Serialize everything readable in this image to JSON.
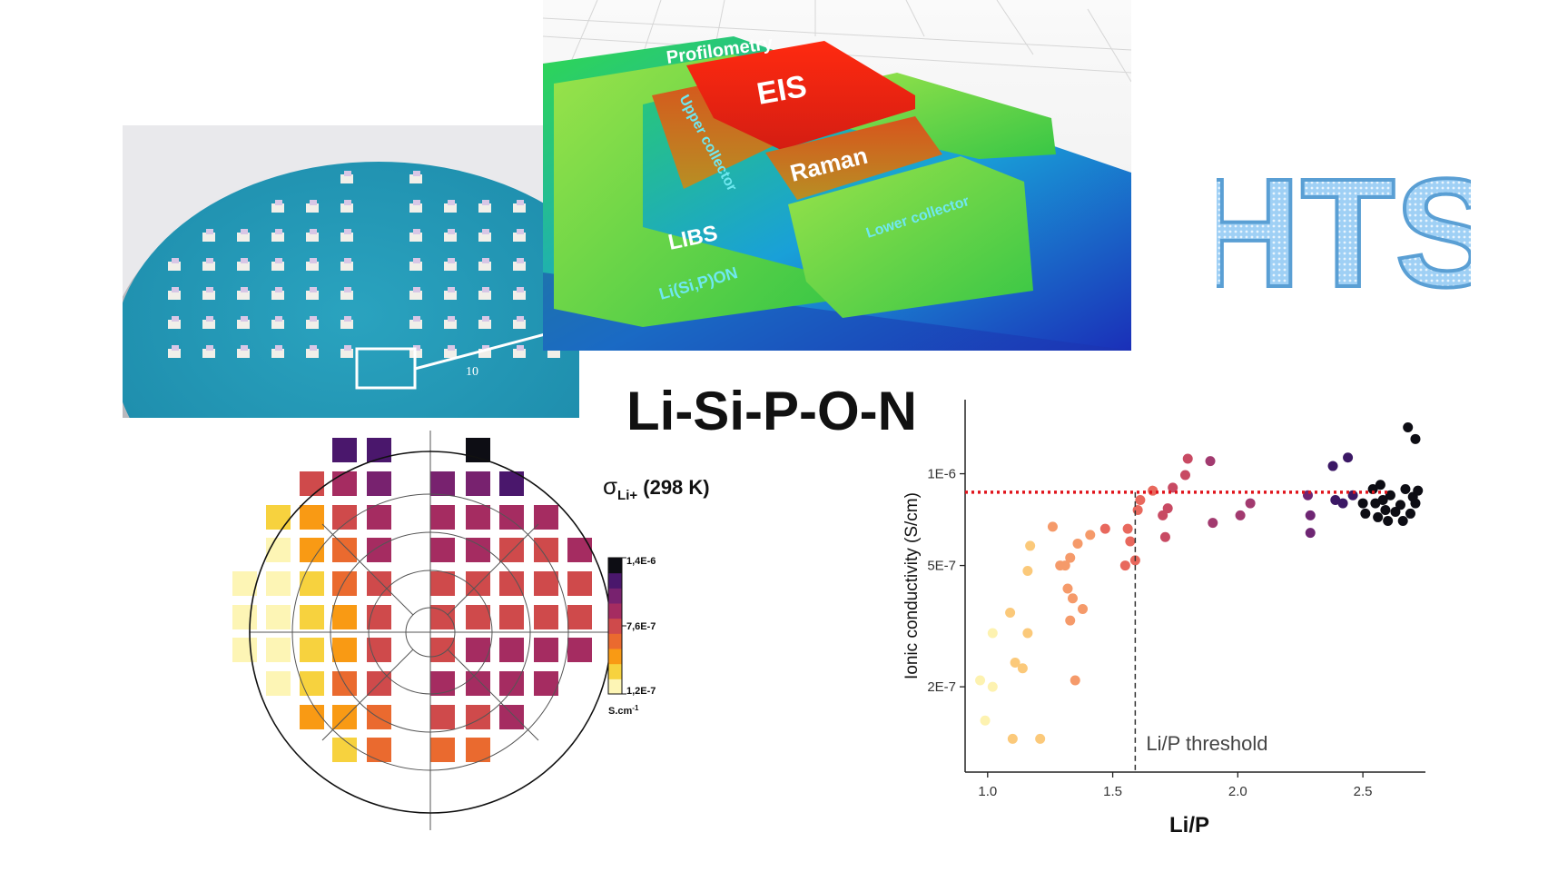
{
  "compound": "Li-Si-P-O-N",
  "hts_logo": "HTS",
  "profilometry": {
    "labels": {
      "profilometry": "Profilometry",
      "eis": "EIS",
      "upper_collector": "Upper collector",
      "raman": "Raman",
      "libs": "LIBS",
      "lower_collector": "Lower collector",
      "lisipon": "Li(Si,P)ON"
    }
  },
  "wafer_photo": {
    "sample_label": "10"
  },
  "wafer_map": {
    "title_symbol": "σ",
    "title_subscript": "Li+",
    "title_suffix": " (298 K)",
    "colorbar": {
      "max_label": "1,4E-6",
      "mid_label": "7,6E-7",
      "min_label": "1,2E-7",
      "unit": "S.cm",
      "unit_exp": "-1"
    },
    "palette": [
      "#fdf5b5",
      "#f7d23e",
      "#f99a14",
      "#ea6a2f",
      "#cf4a4b",
      "#a52c61",
      "#78226f",
      "#4a176c",
      "#0d0d14"
    ]
  },
  "chart_data": {
    "type": "scatter",
    "xlabel": "Li/P",
    "ylabel": "Ionic conductivity (S/cm)",
    "x_ticks": [
      "1.0",
      "1.5",
      "2.0",
      "2.5"
    ],
    "y_ticks": [
      "2E-7",
      "5E-7",
      "1E-6"
    ],
    "y_scale": "log",
    "xlim": [
      0.91,
      2.75
    ],
    "ylim": [
      1.05e-07,
      1.75e-06
    ],
    "threshold_y": 8.7e-07,
    "threshold_x": 1.59,
    "threshold_label": "Li/P threshold",
    "points": [
      {
        "x": 0.97,
        "y": 2.1e-07
      },
      {
        "x": 0.99,
        "y": 1.55e-07
      },
      {
        "x": 1.02,
        "y": 3e-07
      },
      {
        "x": 1.02,
        "y": 2e-07
      },
      {
        "x": 1.09,
        "y": 3.5e-07
      },
      {
        "x": 1.1,
        "y": 1.35e-07
      },
      {
        "x": 1.11,
        "y": 2.4e-07
      },
      {
        "x": 1.14,
        "y": 2.3e-07
      },
      {
        "x": 1.16,
        "y": 3e-07
      },
      {
        "x": 1.16,
        "y": 4.8e-07
      },
      {
        "x": 1.17,
        "y": 5.8e-07
      },
      {
        "x": 1.21,
        "y": 1.35e-07
      },
      {
        "x": 1.26,
        "y": 6.7e-07
      },
      {
        "x": 1.29,
        "y": 5e-07
      },
      {
        "x": 1.31,
        "y": 5e-07
      },
      {
        "x": 1.32,
        "y": 4.2e-07
      },
      {
        "x": 1.33,
        "y": 3.3e-07
      },
      {
        "x": 1.33,
        "y": 5.3e-07
      },
      {
        "x": 1.34,
        "y": 3.9e-07
      },
      {
        "x": 1.35,
        "y": 2.1e-07
      },
      {
        "x": 1.36,
        "y": 5.9e-07
      },
      {
        "x": 1.38,
        "y": 3.6e-07
      },
      {
        "x": 1.41,
        "y": 6.3e-07
      },
      {
        "x": 1.47,
        "y": 6.6e-07
      },
      {
        "x": 1.55,
        "y": 5e-07
      },
      {
        "x": 1.56,
        "y": 6.6e-07
      },
      {
        "x": 1.57,
        "y": 6e-07
      },
      {
        "x": 1.59,
        "y": 5.2e-07
      },
      {
        "x": 1.6,
        "y": 7.6e-07
      },
      {
        "x": 1.61,
        "y": 8.2e-07
      },
      {
        "x": 1.66,
        "y": 8.8e-07
      },
      {
        "x": 1.7,
        "y": 7.3e-07
      },
      {
        "x": 1.71,
        "y": 6.2e-07
      },
      {
        "x": 1.72,
        "y": 7.7e-07
      },
      {
        "x": 1.74,
        "y": 9e-07
      },
      {
        "x": 1.79,
        "y": 9.9e-07
      },
      {
        "x": 1.8,
        "y": 1.12e-06
      },
      {
        "x": 1.89,
        "y": 1.1e-06
      },
      {
        "x": 1.9,
        "y": 6.9e-07
      },
      {
        "x": 2.01,
        "y": 7.3e-07
      },
      {
        "x": 2.05,
        "y": 8e-07
      },
      {
        "x": 2.28,
        "y": 8.5e-07
      },
      {
        "x": 2.29,
        "y": 6.4e-07
      },
      {
        "x": 2.29,
        "y": 7.3e-07
      },
      {
        "x": 2.38,
        "y": 1.06e-06
      },
      {
        "x": 2.39,
        "y": 8.2e-07
      },
      {
        "x": 2.42,
        "y": 8e-07
      },
      {
        "x": 2.44,
        "y": 1.13e-06
      },
      {
        "x": 2.46,
        "y": 8.5e-07
      },
      {
        "x": 2.5,
        "y": 8e-07
      },
      {
        "x": 2.51,
        "y": 7.4e-07
      },
      {
        "x": 2.54,
        "y": 8.9e-07
      },
      {
        "x": 2.55,
        "y": 8e-07
      },
      {
        "x": 2.56,
        "y": 7.2e-07
      },
      {
        "x": 2.57,
        "y": 9.2e-07
      },
      {
        "x": 2.58,
        "y": 8.2e-07
      },
      {
        "x": 2.59,
        "y": 7.6e-07
      },
      {
        "x": 2.6,
        "y": 7e-07
      },
      {
        "x": 2.61,
        "y": 8.5e-07
      },
      {
        "x": 2.63,
        "y": 7.5e-07
      },
      {
        "x": 2.65,
        "y": 7.9e-07
      },
      {
        "x": 2.66,
        "y": 7e-07
      },
      {
        "x": 2.67,
        "y": 8.9e-07
      },
      {
        "x": 2.68,
        "y": 1.42e-06
      },
      {
        "x": 2.69,
        "y": 7.4e-07
      },
      {
        "x": 2.7,
        "y": 8.4e-07
      },
      {
        "x": 2.71,
        "y": 8e-07
      },
      {
        "x": 2.71,
        "y": 1.3e-06
      },
      {
        "x": 2.72,
        "y": 8.8e-07
      }
    ]
  }
}
